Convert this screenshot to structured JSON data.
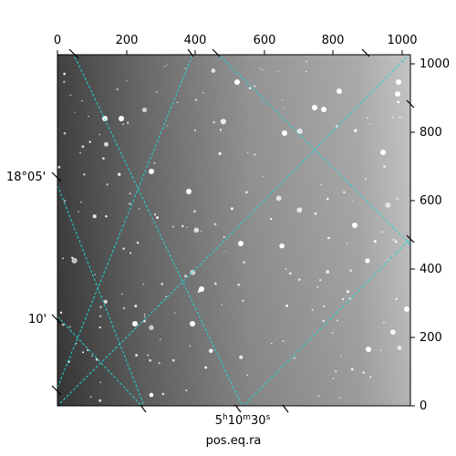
{
  "figure": {
    "xlabel": "pos.eq.ra",
    "top_axis_ticks": [
      "0",
      "200",
      "400",
      "600",
      "800",
      "1000"
    ],
    "right_axis_ticks": [
      "0",
      "200",
      "400",
      "600",
      "800",
      "1000"
    ],
    "dec_labels": [
      "18°05'",
      "10'"
    ],
    "ra_label": {
      "hours": "5",
      "h": "h",
      "minutes": "10",
      "m": "m",
      "seconds": "30",
      "s": "s"
    },
    "grid_color": "#22d4d4"
  }
}
